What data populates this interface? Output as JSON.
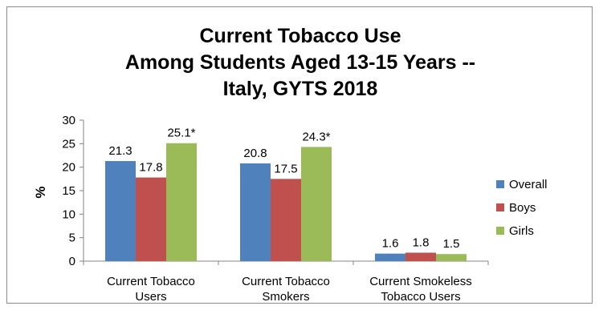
{
  "chart_data": {
    "type": "bar",
    "title_lines": [
      "Current Tobacco Use",
      "Among Students Aged 13-15 Years --",
      "Italy, GYTS 2018"
    ],
    "ylabel": "%",
    "xlabel": "",
    "ylim": [
      0,
      30
    ],
    "yticks": [
      0,
      5,
      10,
      15,
      20,
      25,
      30
    ],
    "grid": false,
    "legend_position": "right",
    "categories": [
      [
        "Current Tobacco",
        "Users"
      ],
      [
        "Current Tobacco",
        "Smokers"
      ],
      [
        "Current Smokeless",
        "Tobacco Users"
      ]
    ],
    "series": [
      {
        "name": "Overall",
        "color": "#4f81bd",
        "values": [
          21.3,
          20.8,
          1.6
        ],
        "labels": [
          "21.3",
          "20.8",
          "1.6"
        ]
      },
      {
        "name": "Boys",
        "color": "#c0504d",
        "values": [
          17.8,
          17.5,
          1.8
        ],
        "labels": [
          "17.8",
          "17.5",
          "1.8"
        ]
      },
      {
        "name": "Girls",
        "color": "#9bbb59",
        "values": [
          25.1,
          24.3,
          1.5
        ],
        "labels": [
          "25.1*",
          "24.3*",
          "1.5"
        ]
      }
    ]
  }
}
